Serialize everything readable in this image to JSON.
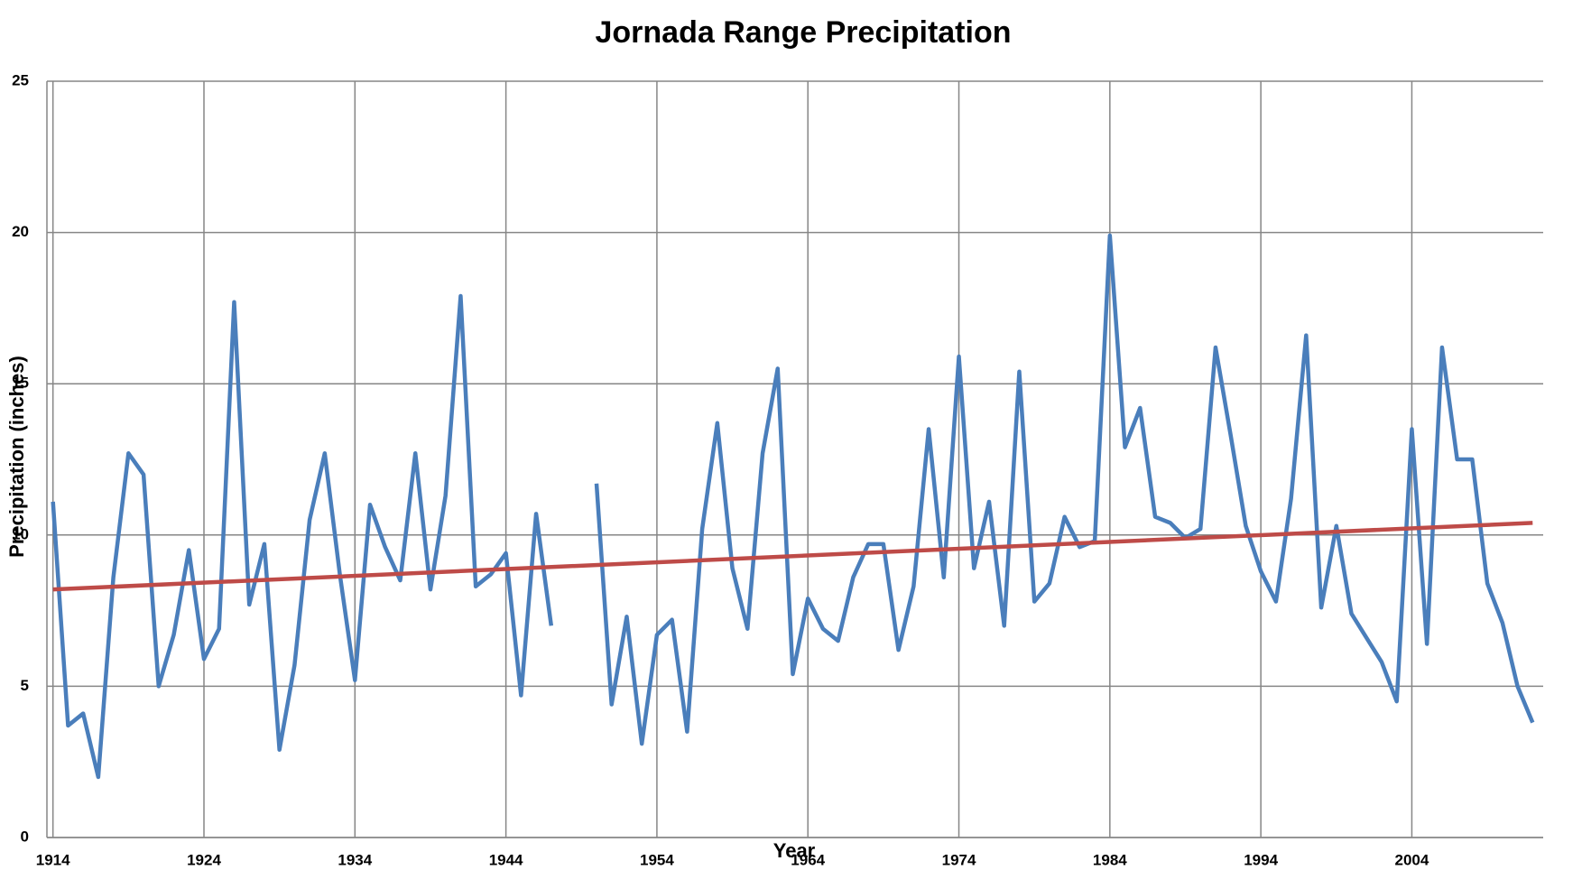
{
  "chart_data": {
    "type": "line",
    "title": "Jornada Range Precipitation",
    "x_label": "Year",
    "y_label": "Precipitation (inches)",
    "x": [
      1914,
      1915,
      1916,
      1917,
      1918,
      1919,
      1920,
      1921,
      1922,
      1923,
      1924,
      1925,
      1926,
      1927,
      1928,
      1929,
      1930,
      1931,
      1932,
      1933,
      1934,
      1935,
      1936,
      1937,
      1938,
      1939,
      1940,
      1941,
      1942,
      1943,
      1944,
      1945,
      1946,
      1947,
      1948,
      1949,
      1950,
      1951,
      1952,
      1953,
      1954,
      1955,
      1956,
      1957,
      1958,
      1959,
      1960,
      1961,
      1962,
      1963,
      1964,
      1965,
      1966,
      1967,
      1968,
      1969,
      1970,
      1971,
      1972,
      1973,
      1974,
      1975,
      1976,
      1977,
      1978,
      1979,
      1980,
      1981,
      1982,
      1983,
      1984,
      1985,
      1986,
      1987,
      1988,
      1989,
      1990,
      1991,
      1992,
      1993,
      1994,
      1995,
      1996,
      1997,
      1998,
      1999,
      2000,
      2001,
      2002,
      2003,
      2004,
      2005,
      2006,
      2007,
      2008,
      2009,
      2010,
      2011,
      2012
    ],
    "series": [
      {
        "color": "#4a7ebb",
        "values": [
          11.1,
          3.7,
          4.1,
          2.0,
          8.6,
          12.7,
          12.0,
          5.0,
          6.7,
          9.5,
          5.9,
          6.9,
          17.7,
          7.7,
          9.7,
          2.9,
          5.7,
          10.5,
          12.7,
          8.7,
          5.2,
          11.0,
          9.6,
          8.5,
          12.7,
          8.2,
          11.3,
          17.9,
          8.3,
          8.7,
          9.4,
          4.7,
          10.7,
          7.0,
          null,
          null,
          11.7,
          4.4,
          7.3,
          3.1,
          6.7,
          7.2,
          3.5,
          10.2,
          13.7,
          8.9,
          6.9,
          12.7,
          15.5,
          5.4,
          7.9,
          6.9,
          6.5,
          8.6,
          9.7,
          9.7,
          6.2,
          8.3,
          13.5,
          8.6,
          15.9,
          8.9,
          11.1,
          7.0,
          15.4,
          7.8,
          8.4,
          10.6,
          9.6,
          9.8,
          19.9,
          12.9,
          14.2,
          10.6,
          10.4,
          9.9,
          10.2,
          16.2,
          13.3,
          10.3,
          8.8,
          7.8,
          11.2,
          16.6,
          7.6,
          10.3,
          7.4,
          6.6,
          5.8,
          4.5,
          13.5,
          6.4,
          16.2,
          12.5,
          12.5,
          8.4,
          7.1,
          5.0,
          3.8
        ]
      },
      {
        "color": "#be4b48",
        "x": [
          1914,
          2012
        ],
        "values": [
          8.2,
          10.4
        ]
      }
    ],
    "xlim": [
      1913.6,
      2012.7
    ],
    "xticks": [
      1914,
      1924,
      1934,
      1944,
      1954,
      1964,
      1974,
      1984,
      1994,
      2004
    ],
    "ylim": [
      0,
      25
    ],
    "yticks": [
      0,
      5,
      10,
      15,
      20,
      25
    ],
    "grid": true
  }
}
